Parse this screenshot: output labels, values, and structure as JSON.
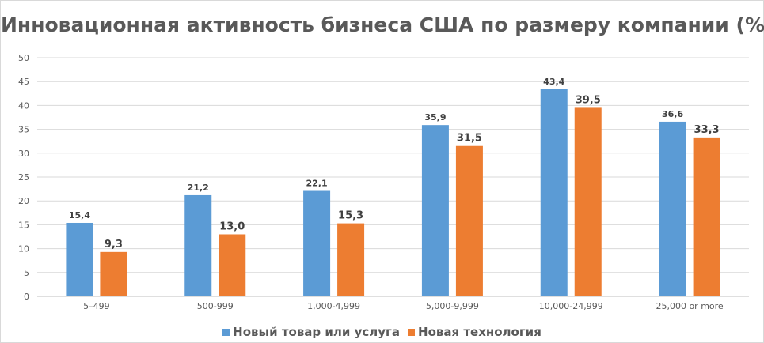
{
  "chart_data": {
    "type": "bar",
    "title": "Инновационная активность бизнеса США по размеру компании (%)",
    "categories": [
      "5–499",
      "500-999",
      "1,000-4,999",
      "5,000-9,999",
      "10,000-24,999",
      "25,000 or more"
    ],
    "series": [
      {
        "name": "Новый товар или услуга",
        "color": "#5b9bd5",
        "values": [
          15.4,
          21.2,
          22.1,
          35.9,
          43.4,
          36.6
        ],
        "labels": [
          "15,4",
          "21,2",
          "22,1",
          "35,9",
          "43,4",
          "36,6"
        ]
      },
      {
        "name": "Новая технология",
        "color": "#ed7d31",
        "values": [
          9.3,
          13.0,
          15.3,
          31.5,
          39.5,
          33.3
        ],
        "labels": [
          "9,3",
          "13,0",
          "15,3",
          "31,5",
          "39,5",
          "33,3"
        ]
      }
    ],
    "ylim": [
      0,
      50
    ],
    "yticks": [
      0,
      5,
      10,
      15,
      20,
      25,
      30,
      35,
      40,
      45,
      50
    ],
    "grid": true,
    "legend_position": "bottom"
  }
}
